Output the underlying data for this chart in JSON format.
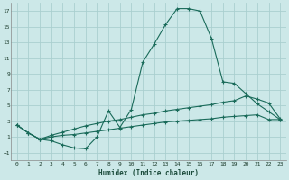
{
  "xlabel": "Humidex (Indice chaleur)",
  "bg_color": "#cce8e8",
  "grid_color": "#aacfcf",
  "line_color": "#1a6b5a",
  "xlim": [
    -0.5,
    23.5
  ],
  "ylim": [
    -2,
    18
  ],
  "xticks": [
    0,
    1,
    2,
    3,
    4,
    5,
    6,
    7,
    8,
    9,
    10,
    11,
    12,
    13,
    14,
    15,
    16,
    17,
    18,
    19,
    20,
    21,
    22,
    23
  ],
  "yticks": [
    -1,
    1,
    3,
    5,
    7,
    9,
    11,
    13,
    15,
    17
  ],
  "line1_x": [
    0,
    1,
    2,
    3,
    4,
    5,
    6,
    7,
    8,
    9,
    10,
    11,
    12,
    13,
    14,
    15,
    16,
    17,
    18,
    19,
    20,
    21,
    22,
    23
  ],
  "line1_y": [
    2.5,
    1.5,
    0.7,
    1.0,
    1.2,
    1.3,
    1.5,
    1.7,
    1.9,
    2.1,
    2.3,
    2.5,
    2.7,
    2.9,
    3.0,
    3.1,
    3.2,
    3.3,
    3.5,
    3.6,
    3.7,
    3.8,
    3.2,
    3.2
  ],
  "line2_x": [
    0,
    1,
    2,
    3,
    4,
    5,
    6,
    7,
    8,
    9,
    10,
    11,
    12,
    13,
    14,
    15,
    16,
    17,
    18,
    19,
    20,
    21,
    22,
    23
  ],
  "line2_y": [
    2.5,
    1.5,
    0.7,
    0.5,
    0.0,
    -0.4,
    -0.5,
    1.0,
    4.3,
    2.2,
    4.5,
    10.5,
    12.8,
    15.3,
    17.3,
    17.3,
    17.0,
    13.5,
    8.0,
    7.8,
    6.5,
    5.2,
    4.2,
    3.2
  ],
  "line3_x": [
    0,
    1,
    2,
    3,
    4,
    5,
    6,
    7,
    8,
    9,
    10,
    11,
    12,
    13,
    14,
    15,
    16,
    17,
    18,
    19,
    20,
    21,
    22,
    23
  ],
  "line3_y": [
    2.5,
    1.5,
    0.7,
    1.2,
    1.6,
    2.0,
    2.4,
    2.7,
    3.0,
    3.2,
    3.5,
    3.8,
    4.0,
    4.3,
    4.5,
    4.7,
    4.9,
    5.1,
    5.4,
    5.6,
    6.2,
    5.8,
    5.3,
    3.3
  ]
}
